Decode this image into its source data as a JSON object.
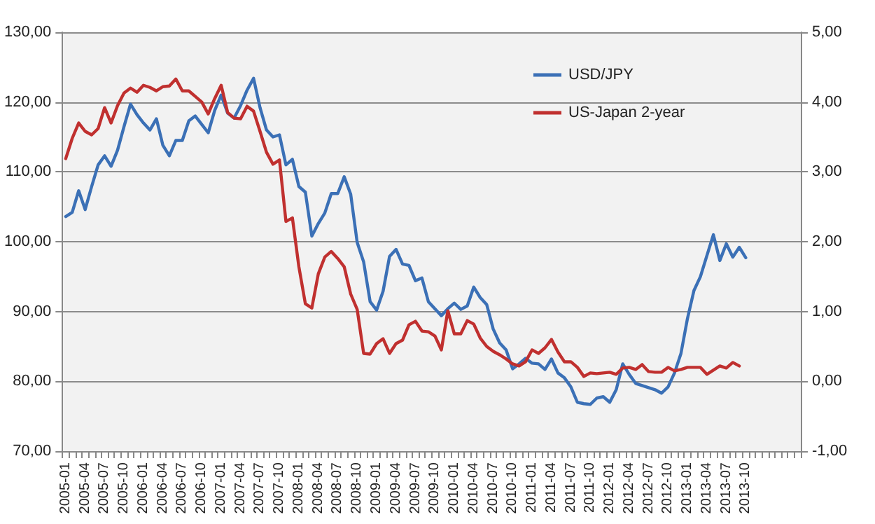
{
  "chart_data": {
    "type": "line",
    "categories": [
      "2005-01",
      null,
      null,
      "2005-04",
      null,
      null,
      "2005-07",
      null,
      null,
      "2005-10",
      null,
      null,
      "2006-01",
      null,
      null,
      "2006-04",
      null,
      null,
      "2006-07",
      null,
      null,
      "2006-10",
      null,
      null,
      "2007-01",
      null,
      null,
      "2007-04",
      null,
      null,
      "2007-07",
      null,
      null,
      "2007-10",
      null,
      null,
      "2008-01",
      null,
      null,
      "2008-04",
      null,
      null,
      "2008-07",
      null,
      null,
      "2008-10",
      null,
      null,
      "2009-01",
      null,
      null,
      "2009-04",
      null,
      null,
      "2009-07",
      null,
      null,
      "2009-10",
      null,
      null,
      "2010-01",
      null,
      null,
      "2010-04",
      null,
      null,
      "2010-07",
      null,
      null,
      "2010-10",
      null,
      null,
      "2011-01",
      null,
      null,
      "2011-04",
      null,
      null,
      "2011-07",
      null,
      null,
      "2011-10",
      null,
      null,
      "2012-01",
      null,
      null,
      "2012-04",
      null,
      null,
      "2012-07",
      null,
      null,
      "2012-10",
      null,
      null,
      "2013-01",
      null,
      null,
      "2013-04",
      null,
      null,
      "2013-07",
      null,
      null,
      "2013-10",
      null,
      null,
      null,
      null,
      null,
      null,
      null,
      null
    ],
    "series": [
      {
        "name": "USD/JPY",
        "color": "#3b70b6",
        "values": [
          103.6,
          104.2,
          107.3,
          104.6,
          107.9,
          111.0,
          112.3,
          110.8,
          113.1,
          116.5,
          119.7,
          118.2,
          117.0,
          116.0,
          117.6,
          113.8,
          112.3,
          114.5,
          114.5,
          117.3,
          118.0,
          116.8,
          115.6,
          118.8,
          121.0,
          118.4,
          117.7,
          119.5,
          121.7,
          123.4,
          119.2,
          116.0,
          115.0,
          115.3,
          111.0,
          111.8,
          107.9,
          107.1,
          100.8,
          102.6,
          104.1,
          106.9,
          106.9,
          109.3,
          106.8,
          99.9,
          97.1,
          91.4,
          90.2,
          92.9,
          97.9,
          98.9,
          96.8,
          96.6,
          94.4,
          94.8,
          91.4,
          90.4,
          89.4,
          90.4,
          91.2,
          90.3,
          90.8,
          93.5,
          92.0,
          91.0,
          87.5,
          85.5,
          84.5,
          81.8,
          82.5,
          83.3,
          82.6,
          82.5,
          81.7,
          83.2,
          81.2,
          80.5,
          79.2,
          77.0,
          76.8,
          76.7,
          77.6,
          77.8,
          77.0,
          78.8,
          82.5,
          81.0,
          79.7,
          79.4,
          79.1,
          78.8,
          78.3,
          79.2,
          81.2,
          84.0,
          89.0,
          93.0,
          95.0,
          98.0,
          101.0,
          97.3,
          99.7,
          97.8,
          99.2,
          97.7,
          null,
          null,
          null,
          null,
          null,
          null,
          null,
          null
        ]
      },
      {
        "name": "US-Japan 2-year",
        "color": "#c0302f",
        "axis": "y2",
        "values": [
          3.19,
          3.48,
          3.7,
          3.58,
          3.53,
          3.62,
          3.92,
          3.7,
          3.95,
          4.13,
          4.2,
          4.14,
          4.24,
          4.21,
          4.16,
          4.22,
          4.23,
          4.33,
          4.16,
          4.16,
          4.08,
          4.0,
          3.83,
          4.05,
          4.24,
          3.85,
          3.77,
          3.76,
          3.94,
          3.87,
          3.58,
          3.28,
          3.11,
          3.17,
          2.29,
          2.34,
          1.64,
          1.11,
          1.05,
          1.54,
          1.78,
          1.86,
          1.76,
          1.64,
          1.25,
          1.03,
          0.4,
          0.39,
          0.54,
          0.61,
          0.4,
          0.54,
          0.59,
          0.81,
          0.86,
          0.72,
          0.71,
          0.65,
          0.45,
          1.01,
          0.68,
          0.68,
          0.87,
          0.82,
          0.62,
          0.5,
          0.43,
          0.38,
          0.32,
          0.25,
          0.22,
          0.28,
          0.45,
          0.4,
          0.48,
          0.6,
          0.42,
          0.28,
          0.28,
          0.2,
          0.07,
          0.12,
          0.11,
          0.12,
          0.13,
          0.1,
          0.19,
          0.2,
          0.17,
          0.24,
          0.14,
          0.13,
          0.13,
          0.2,
          0.15,
          0.17,
          0.2,
          0.2,
          0.2,
          0.1,
          0.16,
          0.22,
          0.19,
          0.27,
          0.22,
          null,
          null,
          null,
          null,
          null,
          null,
          null,
          null,
          null
        ]
      }
    ],
    "ylim": [
      70,
      130
    ],
    "yticks": [
      {
        "value": 70,
        "label": "70,00"
      },
      {
        "value": 80,
        "label": "80,00"
      },
      {
        "value": 90,
        "label": "90,00"
      },
      {
        "value": 100,
        "label": "100,00"
      },
      {
        "value": 110,
        "label": "110,00"
      },
      {
        "value": 120,
        "label": "120,00"
      },
      {
        "value": 130,
        "label": "130,00"
      }
    ],
    "y2lim": [
      -1,
      5
    ],
    "y2ticks": [
      {
        "value": -1,
        "label": "-1,00"
      },
      {
        "value": 0,
        "label": "0,00"
      },
      {
        "value": 1,
        "label": "1,00"
      },
      {
        "value": 2,
        "label": "2,00"
      },
      {
        "value": 3,
        "label": "3,00"
      },
      {
        "value": 4,
        "label": "4,00"
      },
      {
        "value": 5,
        "label": "5,00"
      }
    ],
    "grid": "y",
    "legend": "top right",
    "marker": "none",
    "line_style": "solid"
  }
}
